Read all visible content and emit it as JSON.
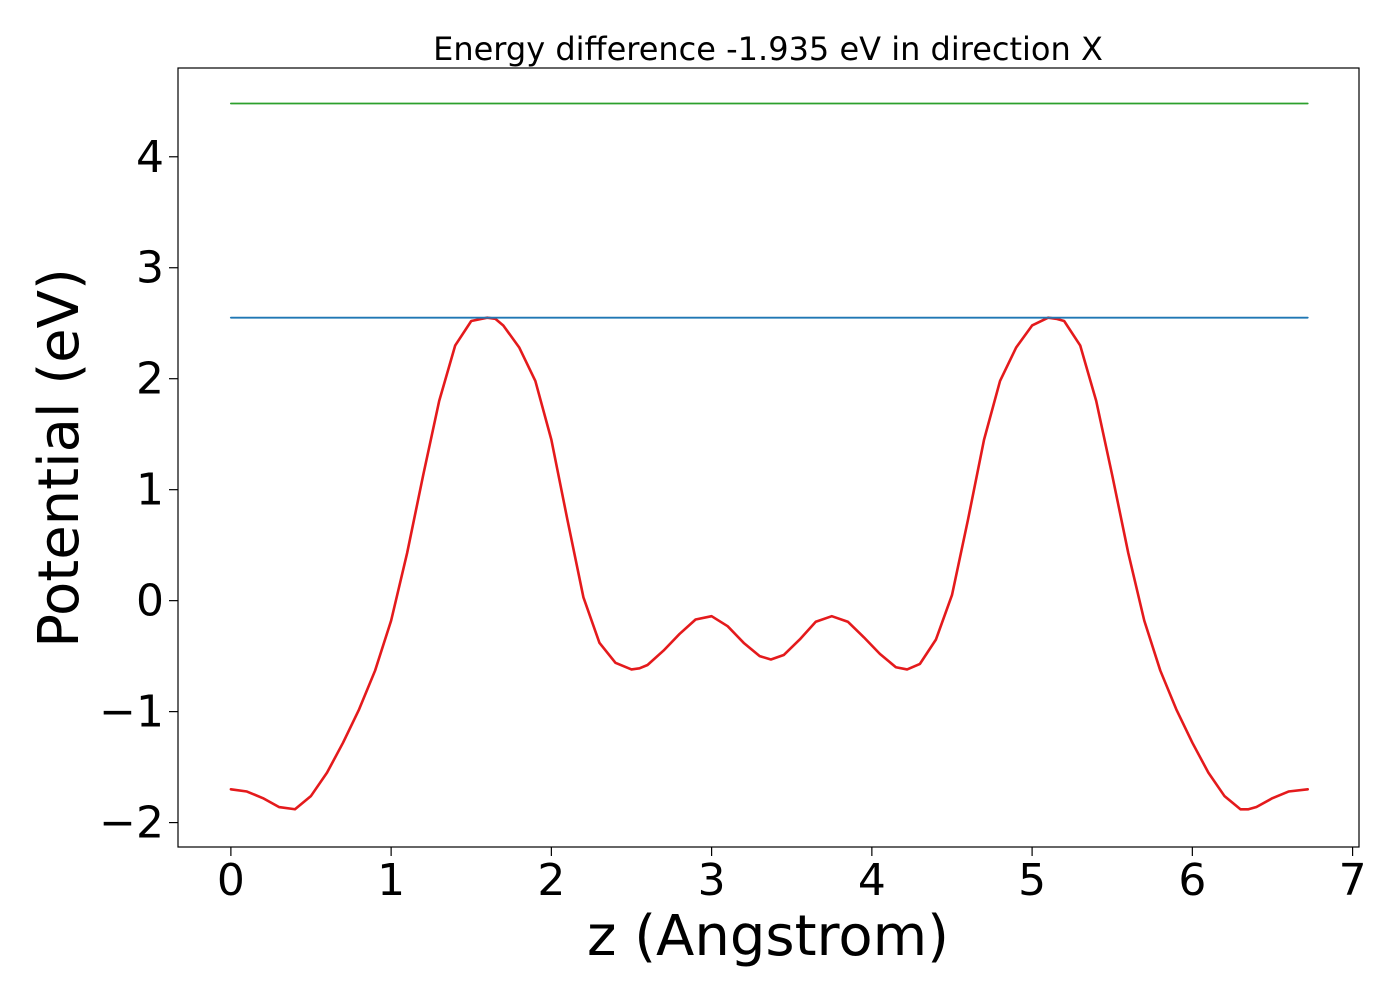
{
  "chart_data": {
    "type": "line",
    "title": "Energy difference -1.935 eV in direction X",
    "xlabel": "z (Angstrom)",
    "ylabel": "Potential (eV)",
    "xlim": [
      -0.33,
      7.04
    ],
    "ylim": [
      -2.22,
      4.8
    ],
    "xticks": [
      {
        "value": 0,
        "label": "0"
      },
      {
        "value": 1,
        "label": "1"
      },
      {
        "value": 2,
        "label": "2"
      },
      {
        "value": 3,
        "label": "3"
      },
      {
        "value": 4,
        "label": "4"
      },
      {
        "value": 5,
        "label": "5"
      },
      {
        "value": 6,
        "label": "6"
      },
      {
        "value": 7,
        "label": "7"
      }
    ],
    "yticks": [
      {
        "value": -2,
        "label": "−2"
      },
      {
        "value": -1,
        "label": "−1"
      },
      {
        "value": 0,
        "label": "0"
      },
      {
        "value": 1,
        "label": "1"
      },
      {
        "value": 2,
        "label": "2"
      },
      {
        "value": 3,
        "label": "3"
      },
      {
        "value": 4,
        "label": "4"
      }
    ],
    "grid": false,
    "series": [
      {
        "color": "#e41a1c",
        "x": [
          0,
          0.1,
          0.2,
          0.3,
          0.4,
          0.5,
          0.6,
          0.7,
          0.8,
          0.9,
          1.0,
          1.1,
          1.2,
          1.3,
          1.4,
          1.5,
          1.6,
          1.65,
          1.7,
          1.8,
          1.9,
          2.0,
          2.1,
          2.2,
          2.3,
          2.4,
          2.5,
          2.55,
          2.6,
          2.7,
          2.8,
          2.9,
          3.0,
          3.1,
          3.2,
          3.3,
          3.37,
          3.45,
          3.55,
          3.65,
          3.75,
          3.85,
          3.95,
          4.05,
          4.15,
          4.22,
          4.3,
          4.4,
          4.5,
          4.6,
          4.7,
          4.8,
          4.9,
          5.0,
          5.1,
          5.15,
          5.2,
          5.3,
          5.4,
          5.5,
          5.6,
          5.7,
          5.8,
          5.9,
          6.0,
          6.1,
          6.2,
          6.3,
          6.35,
          6.4,
          6.5,
          6.6,
          6.72
        ],
        "y": [
          -1.7,
          -1.72,
          -1.78,
          -1.86,
          -1.88,
          -1.76,
          -1.55,
          -1.28,
          -0.98,
          -0.63,
          -0.18,
          0.43,
          1.13,
          1.8,
          2.3,
          2.52,
          2.55,
          2.54,
          2.48,
          2.28,
          1.98,
          1.45,
          0.73,
          0.03,
          -0.38,
          -0.56,
          -0.62,
          -0.61,
          -0.58,
          -0.45,
          -0.3,
          -0.17,
          -0.14,
          -0.23,
          -0.38,
          -0.5,
          -0.53,
          -0.49,
          -0.35,
          -0.19,
          -0.14,
          -0.19,
          -0.33,
          -0.48,
          -0.6,
          -0.62,
          -0.57,
          -0.35,
          0.05,
          0.73,
          1.45,
          1.98,
          2.28,
          2.48,
          2.55,
          2.54,
          2.52,
          2.3,
          1.8,
          1.13,
          0.43,
          -0.18,
          -0.63,
          -0.98,
          -1.28,
          -1.55,
          -1.76,
          -1.88,
          -1.88,
          -1.86,
          -1.78,
          -1.72,
          -1.7
        ]
      },
      {
        "color": "#1f77b4",
        "x": [
          0,
          6.72
        ],
        "y": [
          2.55,
          2.55
        ]
      },
      {
        "color": "#2ca02c",
        "x": [
          0,
          6.72
        ],
        "y": [
          4.48,
          4.48
        ]
      }
    ]
  }
}
